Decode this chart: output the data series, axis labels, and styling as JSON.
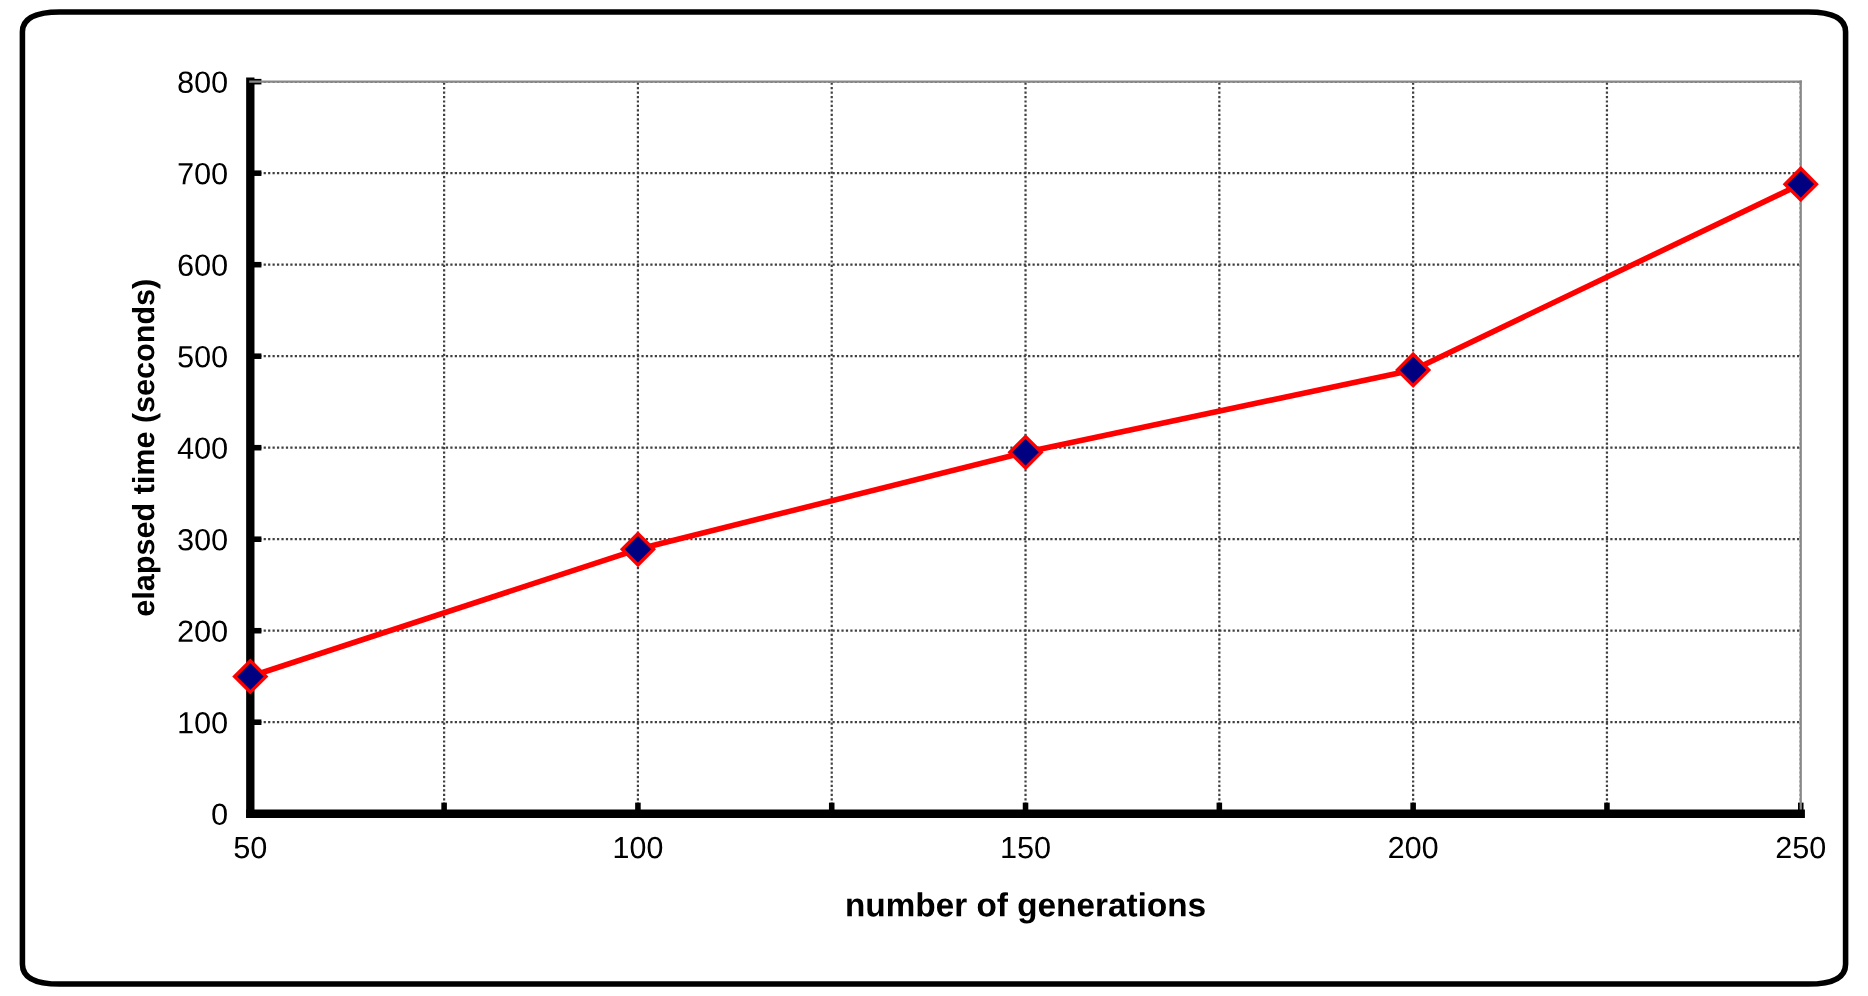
{
  "chart_data": {
    "type": "line",
    "xlabel": "number of generations",
    "ylabel": "elapsed time (seconds)",
    "x": [
      50,
      100,
      150,
      200,
      250
    ],
    "series": [
      {
        "color": "#ff0000",
        "values": [
          150,
          289,
          395,
          485,
          688
        ]
      }
    ],
    "xlim": [
      50,
      250
    ],
    "xticks": [
      50,
      {
        "value": 75,
        "label": null
      },
      100,
      {
        "value": 125,
        "label": null
      },
      150,
      {
        "value": 175,
        "label": null
      },
      200,
      {
        "value": 225,
        "label": null
      },
      250
    ],
    "ylim": [
      0,
      800
    ],
    "yticks": [
      0,
      100,
      200,
      300,
      400,
      500,
      600,
      700,
      800
    ],
    "grid": true,
    "marker": "diamond",
    "line_style": "solid",
    "legend": false
  }
}
